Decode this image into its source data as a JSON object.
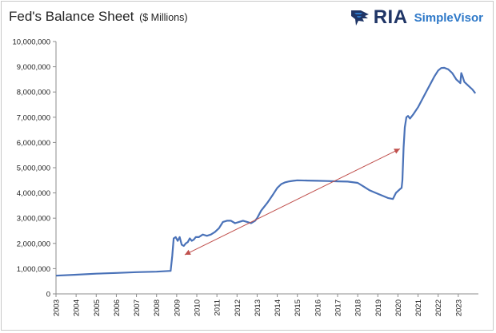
{
  "header": {
    "title": "Fed's Balance Sheet",
    "subtitle": "($ Millions)"
  },
  "logo": {
    "brand": "RIA",
    "product": "SimpleVisor",
    "icon": "eagle-logo-icon",
    "colors": {
      "brand": "#1f3566",
      "product": "#2d78c8"
    }
  },
  "chart_data": {
    "type": "line",
    "title": "Fed's Balance Sheet ($ Millions)",
    "xlabel": "",
    "ylabel": "",
    "ylim": [
      0,
      10000000
    ],
    "xlim": [
      2003,
      2024
    ],
    "grid": false,
    "legend": "none",
    "line_color": "#4a72b8",
    "arrow_color": "#c0504d",
    "y_ticks": [
      "0",
      "1,000,000",
      "2,000,000",
      "3,000,000",
      "4,000,000",
      "5,000,000",
      "6,000,000",
      "7,000,000",
      "8,000,000",
      "9,000,000",
      "10,000,000"
    ],
    "y_tick_values": [
      0,
      1000000,
      2000000,
      3000000,
      4000000,
      5000000,
      6000000,
      7000000,
      8000000,
      9000000,
      10000000
    ],
    "x_ticks": [
      "2003",
      "2004",
      "2005",
      "2006",
      "2007",
      "2008",
      "2009",
      "2010",
      "2011",
      "2012",
      "2013",
      "2014",
      "2015",
      "2016",
      "2017",
      "2018",
      "2019",
      "2020",
      "2021",
      "2022",
      "2023"
    ],
    "x_tick_values": [
      2003,
      2004,
      2005,
      2006,
      2007,
      2008,
      2009,
      2010,
      2011,
      2012,
      2013,
      2014,
      2015,
      2016,
      2017,
      2018,
      2019,
      2020,
      2021,
      2022,
      2023
    ],
    "series": [
      {
        "x": [
          2003.0,
          2004.0,
          2005.0,
          2006.0,
          2007.0,
          2008.0,
          2008.7,
          2008.78,
          2008.85,
          2008.95,
          2009.05,
          2009.15,
          2009.25,
          2009.35,
          2009.45,
          2009.55,
          2009.65,
          2009.75,
          2009.85,
          2009.95,
          2010.1,
          2010.3,
          2010.5,
          2010.7,
          2010.9,
          2011.1,
          2011.3,
          2011.5,
          2011.7,
          2011.9,
          2012.1,
          2012.3,
          2012.5,
          2012.7,
          2012.9,
          2013.0,
          2013.2,
          2013.5,
          2013.8,
          2014.0,
          2014.2,
          2014.4,
          2014.6,
          2014.8,
          2015.0,
          2015.5,
          2016.0,
          2016.5,
          2017.0,
          2017.5,
          2018.0,
          2018.3,
          2018.6,
          2018.9,
          2019.2,
          2019.5,
          2019.75,
          2019.9,
          2020.1,
          2020.18,
          2020.22,
          2020.28,
          2020.34,
          2020.42,
          2020.5,
          2020.6,
          2020.75,
          2021.0,
          2021.2,
          2021.4,
          2021.6,
          2021.8,
          2022.0,
          2022.15,
          2022.3,
          2022.5,
          2022.7,
          2022.9,
          2023.1,
          2023.15,
          2023.2,
          2023.3,
          2023.5,
          2023.7,
          2023.85
        ],
        "values": [
          720000,
          760000,
          800000,
          830000,
          860000,
          880000,
          910000,
          1500000,
          2200000,
          2250000,
          2100000,
          2250000,
          1950000,
          1900000,
          2000000,
          2050000,
          2200000,
          2100000,
          2150000,
          2250000,
          2250000,
          2350000,
          2300000,
          2350000,
          2450000,
          2600000,
          2850000,
          2900000,
          2900000,
          2800000,
          2850000,
          2900000,
          2850000,
          2800000,
          2900000,
          3000000,
          3300000,
          3600000,
          3950000,
          4200000,
          4350000,
          4420000,
          4460000,
          4480000,
          4500000,
          4490000,
          4480000,
          4470000,
          4460000,
          4450000,
          4400000,
          4250000,
          4100000,
          4000000,
          3900000,
          3800000,
          3760000,
          4000000,
          4150000,
          4200000,
          4500000,
          5800000,
          6600000,
          7000000,
          7050000,
          6950000,
          7100000,
          7400000,
          7700000,
          8000000,
          8300000,
          8600000,
          8850000,
          8950000,
          8960000,
          8900000,
          8750000,
          8500000,
          8350000,
          8750000,
          8650000,
          8400000,
          8250000,
          8100000,
          7950000
        ]
      }
    ],
    "arrow": {
      "from": [
        2009.4,
        1550000
      ],
      "to": [
        2020.1,
        5750000
      ]
    }
  }
}
